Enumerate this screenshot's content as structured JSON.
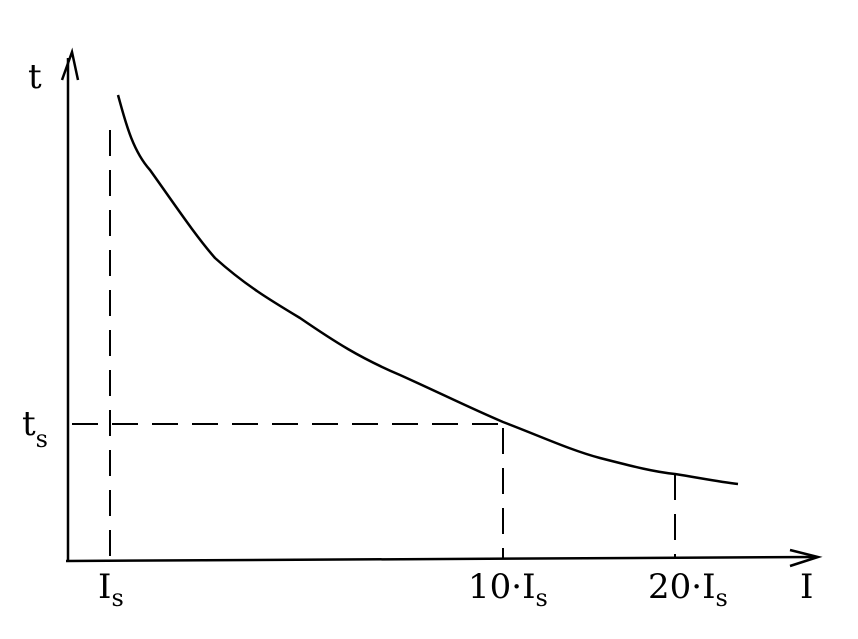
{
  "axes": {
    "y_label": "t",
    "x_label": "I"
  },
  "y_marks": [
    {
      "base": "t",
      "sub": "s"
    }
  ],
  "x_marks": [
    {
      "base": "I",
      "sub": "s"
    },
    {
      "base": "10·I",
      "sub": "s"
    },
    {
      "base": "20·I",
      "sub": "s"
    }
  ]
}
